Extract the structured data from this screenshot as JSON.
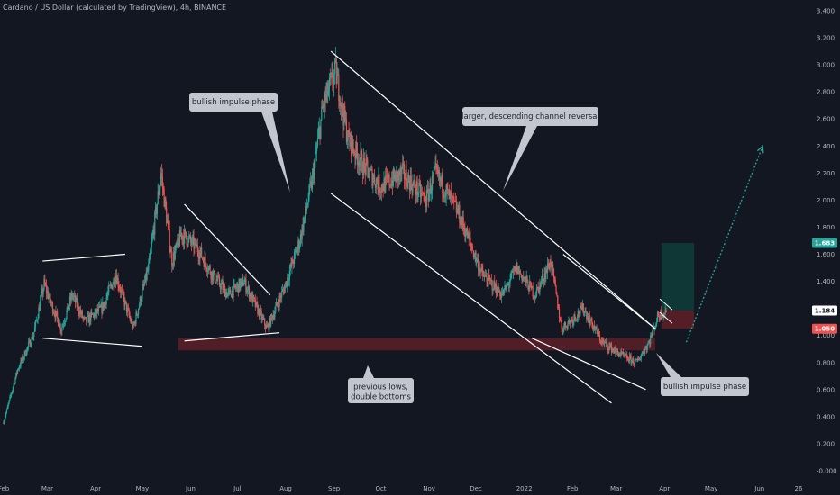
{
  "header": {
    "title": "Cardano / US Dollar (calculated by TradingView), 4h, BINANCE"
  },
  "colors": {
    "background": "#131722",
    "up": "#26a69a",
    "down": "#ef5350",
    "support_zone": "#5d1f28",
    "target_zone": "#0f3b37",
    "stop_zone": "#5d1f28",
    "trendline": "#ffffff",
    "projection": "#26a69a",
    "callout_bg": "#c3c6ce"
  },
  "chart_data": {
    "type": "candlestick",
    "title": "Cardano / US Dollar (calculated by TradingView), 4h, BINANCE",
    "x_ticks": [
      "Feb",
      "Mar",
      "Apr",
      "May",
      "Jun",
      "Jul",
      "Aug",
      "Sep",
      "Oct",
      "Nov",
      "Dec",
      "2022",
      "Feb",
      "Mar",
      "Apr",
      "May",
      "Jun",
      "26"
    ],
    "y_ticks": [
      "3.400",
      "3.200",
      "3.000",
      "2.800",
      "2.600",
      "2.400",
      "2.200",
      "2.000",
      "1.800",
      "1.600",
      "1.400",
      "1.200",
      "1.000",
      "0.800",
      "0.600",
      "0.400",
      "0.200",
      "-0.000"
    ],
    "ylim": [
      -0.02,
      3.42
    ],
    "price_path": [
      {
        "date": "2021-02-01",
        "price": 0.36
      },
      {
        "date": "2021-02-10",
        "price": 0.75
      },
      {
        "date": "2021-02-20",
        "price": 1.0
      },
      {
        "date": "2021-02-27",
        "price": 1.38
      },
      {
        "date": "2021-03-03",
        "price": 1.25
      },
      {
        "date": "2021-03-10",
        "price": 1.05
      },
      {
        "date": "2021-03-17",
        "price": 1.3
      },
      {
        "date": "2021-03-25",
        "price": 1.1
      },
      {
        "date": "2021-04-05",
        "price": 1.2
      },
      {
        "date": "2021-04-14",
        "price": 1.45
      },
      {
        "date": "2021-04-25",
        "price": 1.05
      },
      {
        "date": "2021-05-05",
        "price": 1.5
      },
      {
        "date": "2021-05-13",
        "price": 2.2
      },
      {
        "date": "2021-05-20",
        "price": 1.55
      },
      {
        "date": "2021-05-26",
        "price": 1.75
      },
      {
        "date": "2021-06-05",
        "price": 1.65
      },
      {
        "date": "2021-06-15",
        "price": 1.45
      },
      {
        "date": "2021-06-25",
        "price": 1.3
      },
      {
        "date": "2021-07-05",
        "price": 1.4
      },
      {
        "date": "2021-07-20",
        "price": 1.05
      },
      {
        "date": "2021-07-31",
        "price": 1.35
      },
      {
        "date": "2021-08-10",
        "price": 1.7
      },
      {
        "date": "2021-08-18",
        "price": 2.15
      },
      {
        "date": "2021-08-25",
        "price": 2.7
      },
      {
        "date": "2021-09-02",
        "price": 2.95
      },
      {
        "date": "2021-09-10",
        "price": 2.45
      },
      {
        "date": "2021-09-20",
        "price": 2.25
      },
      {
        "date": "2021-10-01",
        "price": 2.1
      },
      {
        "date": "2021-10-15",
        "price": 2.2
      },
      {
        "date": "2021-10-30",
        "price": 2.0
      },
      {
        "date": "2021-11-05",
        "price": 2.2
      },
      {
        "date": "2021-11-20",
        "price": 1.9
      },
      {
        "date": "2021-12-05",
        "price": 1.45
      },
      {
        "date": "2021-12-18",
        "price": 1.3
      },
      {
        "date": "2021-12-27",
        "price": 1.5
      },
      {
        "date": "2022-01-08",
        "price": 1.3
      },
      {
        "date": "2022-01-18",
        "price": 1.55
      },
      {
        "date": "2022-01-25",
        "price": 1.05
      },
      {
        "date": "2022-02-08",
        "price": 1.2
      },
      {
        "date": "2022-02-20",
        "price": 0.95
      },
      {
        "date": "2022-03-05",
        "price": 0.85
      },
      {
        "date": "2022-03-14",
        "price": 0.8
      },
      {
        "date": "2022-03-22",
        "price": 0.95
      },
      {
        "date": "2022-03-28",
        "price": 1.15
      },
      {
        "date": "2022-04-02",
        "price": 1.184
      }
    ],
    "support_zone": {
      "from_date": "2021-05-24",
      "to_date": "2022-03-26",
      "price_low": 0.89,
      "price_high": 0.98
    },
    "long_position": {
      "from_date": "2022-03-30",
      "to_date": "2022-04-20",
      "entry": 1.184,
      "target": 1.683,
      "stop": 1.05
    },
    "price_tags": [
      {
        "label": "1.683",
        "value": 1.683,
        "color": "#26a69a"
      },
      {
        "label": "1.184",
        "value": 1.184,
        "color": "#ffffff"
      },
      {
        "label": "1.050",
        "value": 1.05,
        "color": "#ef5350"
      }
    ],
    "trendlines": [
      {
        "from": {
          "date": "2021-02-26",
          "price": 1.55
        },
        "to": {
          "date": "2021-04-20",
          "price": 1.6
        }
      },
      {
        "from": {
          "date": "2021-02-26",
          "price": 0.98
        },
        "to": {
          "date": "2021-05-01",
          "price": 0.92
        }
      },
      {
        "from": {
          "date": "2021-05-28",
          "price": 1.97
        },
        "to": {
          "date": "2021-07-22",
          "price": 1.3
        }
      },
      {
        "from": {
          "date": "2021-05-28",
          "price": 0.96
        },
        "to": {
          "date": "2021-07-28",
          "price": 1.02
        }
      },
      {
        "from": {
          "date": "2021-08-30",
          "price": 3.1
        },
        "to": {
          "date": "2022-03-26",
          "price": 1.05
        }
      },
      {
        "from": {
          "date": "2021-08-30",
          "price": 2.05
        },
        "to": {
          "date": "2022-02-26",
          "price": 0.5
        }
      },
      {
        "from": {
          "date": "2022-01-26",
          "price": 1.6
        },
        "to": {
          "date": "2022-03-26",
          "price": 1.05
        }
      },
      {
        "from": {
          "date": "2022-01-06",
          "price": 0.98
        },
        "to": {
          "date": "2022-03-20",
          "price": 0.6
        }
      }
    ],
    "projection": {
      "from": {
        "date": "2022-04-15",
        "price": 0.95
      },
      "to": {
        "date": "2022-06-03",
        "price": 2.4
      }
    },
    "annotations": [
      {
        "text": "bullish impulse phase",
        "pointer": "down"
      },
      {
        "text": "larger, descending channel reversal",
        "pointer": "down"
      },
      {
        "text": "previous lows,\ndouble bottoms",
        "pointer": "up"
      },
      {
        "text": "bullish impulse phase",
        "pointer": "up"
      }
    ]
  }
}
